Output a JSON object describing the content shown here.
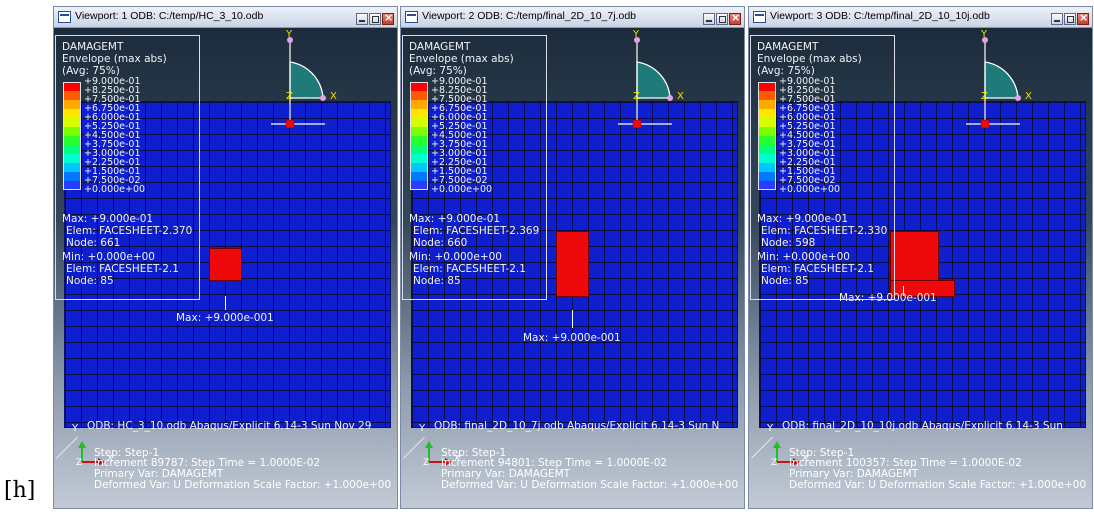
{
  "figure_label": "[h]",
  "legend": {
    "title": "DAMAGEMT",
    "subtitle": "Envelope (max abs)",
    "avg": "(Avg: 75%)",
    "values": [
      "+9.000e-01",
      "+8.250e-01",
      "+7.500e-01",
      "+6.750e-01",
      "+6.000e-01",
      "+5.250e-01",
      "+4.500e-01",
      "+3.750e-01",
      "+3.000e-01",
      "+2.250e-01",
      "+1.500e-01",
      "+7.500e-02",
      "+0.000e+00"
    ],
    "colors": [
      "#ff0000",
      "#ff5a00",
      "#ffaa00",
      "#ffe600",
      "#d4ff00",
      "#7eff00",
      "#27ff2f",
      "#00ff7a",
      "#00ffd0",
      "#00c8ff",
      "#0078ff",
      "#2a3cff"
    ]
  },
  "axis_labels": {
    "y": "Y",
    "x": "X",
    "z": "Z"
  },
  "viewports": [
    {
      "title": "Viewport: 1    ODB: C:/temp/HC_3_10.odb",
      "max_line": "Max: +9.000e-01",
      "max_elem": "Elem: FACESHEET-2.370",
      "max_node": "Node: 661",
      "min_line": "Min: +0.000e+00",
      "min_elem": "Elem: FACESHEET-2.1",
      "min_node": "Node: 85",
      "max_annotation": "Max: +9.000e-001",
      "odb_line": "ODB: HC_3_10.odb    Abaqus/Explicit 6.14-3    Sun Nov 29",
      "step": "Step: Step-1",
      "increment": "Increment     89787: Step Time =    1.0000E-02",
      "primary_var": "Primary Var: DAMAGEMT",
      "deformed_var": "Deformed Var: U   Deformation Scale Factor: +1.000e+00"
    },
    {
      "title": "Viewport: 2    ODB: C:/temp/final_2D_10_7j.odb",
      "max_line": "Max: +9.000e-01",
      "max_elem": "Elem: FACESHEET-2.369",
      "max_node": "Node: 660",
      "min_line": "Min: +0.000e+00",
      "min_elem": "Elem: FACESHEET-2.1",
      "min_node": "Node: 85",
      "max_annotation": "Max: +9.000e-001",
      "odb_line": "ODB: final_2D_10_7j.odb    Abaqus/Explicit 6.14-3    Sun N",
      "step": "Step: Step-1",
      "increment": "Increment     94801: Step Time =    1.0000E-02",
      "primary_var": "Primary Var: DAMAGEMT",
      "deformed_var": "Deformed Var: U   Deformation Scale Factor: +1.000e+00"
    },
    {
      "title": "Viewport: 3    ODB: C:/temp/final_2D_10_10j.odb",
      "max_line": "Max: +9.000e-01",
      "max_elem": "Elem: FACESHEET-2.330",
      "max_node": "Node: 598",
      "min_line": "Min: +0.000e+00",
      "min_elem": "Elem: FACESHEET-2.1",
      "min_node": "Node: 85",
      "max_annotation": "Max: +9.000e-001",
      "odb_line": "ODB: final_2D_10_10j.odb    Abaqus/Explicit 6.14-3    Sun",
      "step": "Step: Step-1",
      "increment": "Increment   100357: Step Time =    1.0000E-02",
      "primary_var": "Primary Var: DAMAGEMT",
      "deformed_var": "Deformed Var: U   Deformation Scale Factor: +1.000e+00"
    }
  ]
}
